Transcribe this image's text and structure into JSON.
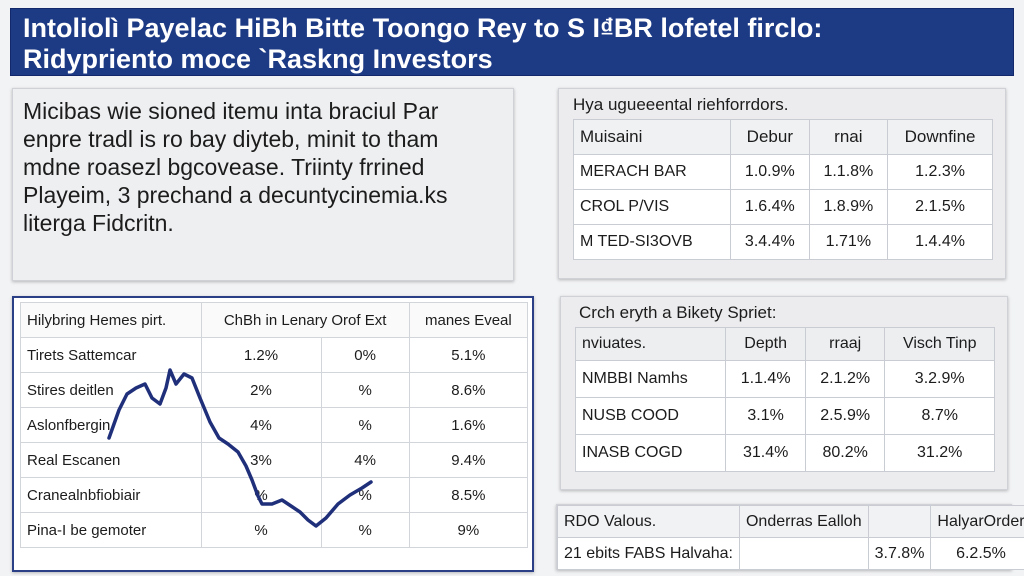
{
  "banner": {
    "line1": "Intoliolì Payelac HiBh Bitte Toongo Rey to S I₫BR lofetel firclo:",
    "line2": "Ridypriento moce `Raskng Investors"
  },
  "intro": {
    "lines": [
      "Micibas wie sioned itemu inta braciul Par",
      "enpre tradl is ro bay diyteb, minit to tham",
      "mdne roasezl bgcovease. Triinty frrined",
      "Playeim, 3 prechand a decuntycinemia.ks",
      "literga Fidcritn."
    ]
  },
  "table_a": {
    "title": "Hya ugueeental riehforrdors.",
    "header": [
      "Muisaini",
      "Debur",
      "rnai",
      "Downfine"
    ],
    "rows": [
      [
        "MERACH BAR",
        "1.0.9%",
        "1.1.8%",
        "1.2.3%"
      ],
      [
        "CROL P/VIS",
        "1.6.4%",
        "1.8.9%",
        "2.1.5%"
      ],
      [
        "M TED-SI3OVB",
        "3.4.4%",
        "1.71%",
        "1.4.4%"
      ]
    ]
  },
  "table_b": {
    "header": [
      "Hilybring Hemes pirt.",
      "ChBh in Lenary Orof Ext",
      "manes Eveal"
    ],
    "rows": [
      [
        "Tirets Sattemcar",
        "1.2%",
        "0%",
        "5.1%"
      ],
      [
        "Stires deitlen",
        "2%",
        "%",
        "8.6%"
      ],
      [
        "Aslonfbergin",
        "4%",
        "%",
        "1.6%"
      ],
      [
        "Real Escanen",
        "3%",
        "4%",
        "9.4%"
      ],
      [
        "Cranealnbfiobiair",
        "%",
        "%",
        "8.5%"
      ],
      [
        "Pina-I be gemoter",
        "%",
        "%",
        "9%"
      ]
    ],
    "line_color": "#1f2f7a"
  },
  "table_c": {
    "title": "Crch eryth a Bikety Spriet:",
    "header": [
      "nviuates.",
      "Depth",
      "rraaj",
      "Visch Tinp"
    ],
    "rows": [
      [
        "NMBBI Namhs",
        "1.1.4%",
        "2.1.2%",
        "3.2.9%"
      ],
      [
        "NUSB COOD",
        "3.1%",
        "2.5.9%",
        "8.7%"
      ],
      [
        "INASB COGD",
        "31.4%",
        "80.2%",
        "31.2%"
      ]
    ]
  },
  "table_d": {
    "header": [
      "RDO Valous.",
      "Onderras Ealloh",
      "",
      "HalyarOrder"
    ],
    "row": [
      "21 ebits FABS Halvaha:",
      "",
      "3.7.8%",
      "6.2.5%"
    ]
  }
}
